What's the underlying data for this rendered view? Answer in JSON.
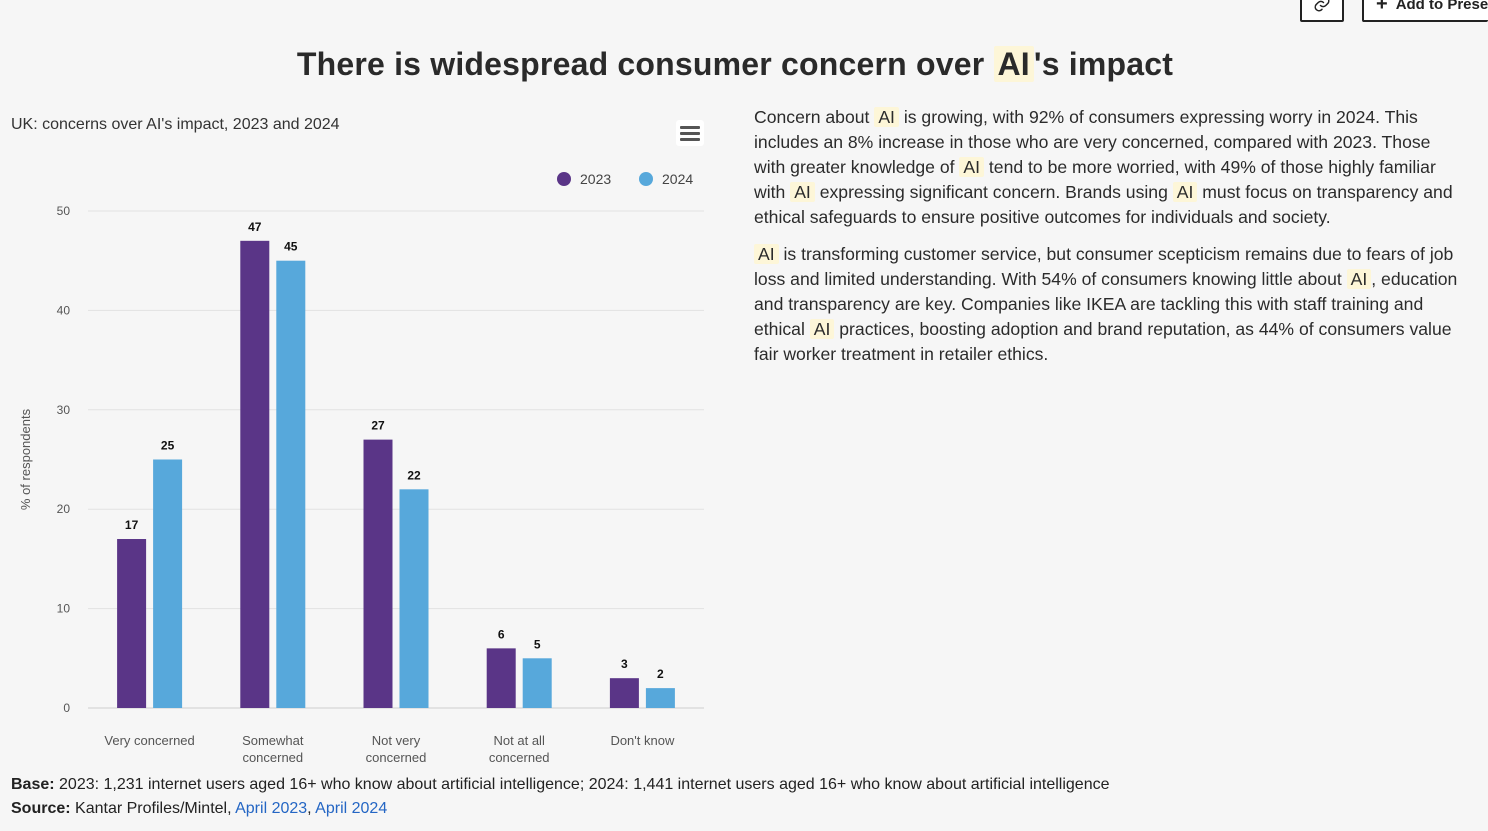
{
  "toolbar": {
    "add_label": "Add to Prese"
  },
  "page": {
    "title_before": "There is widespread consumer concern over",
    "title_highlight": "AI",
    "title_after": "'s impact"
  },
  "chart_data": {
    "type": "bar",
    "title": "UK: concerns over AI's impact, 2023 and 2024",
    "xlabel": "",
    "ylabel": "% of respondents",
    "ylim": [
      0,
      50
    ],
    "yticks": [
      0,
      10,
      20,
      30,
      40,
      50
    ],
    "grid": true,
    "legend_position": "top-right",
    "categories": [
      [
        "Very concerned"
      ],
      [
        "Somewhat",
        "concerned"
      ],
      [
        "Not very",
        "concerned"
      ],
      [
        "Not at all",
        "concerned"
      ],
      [
        "Don't know"
      ]
    ],
    "series": [
      {
        "name": "2023",
        "color": "#5a3587",
        "values": [
          17,
          47,
          27,
          6,
          3
        ]
      },
      {
        "name": "2024",
        "color": "#57a8db",
        "values": [
          25,
          45,
          22,
          5,
          2
        ]
      }
    ]
  },
  "article": {
    "paragraphs": [
      [
        {
          "t": "Concern about "
        },
        {
          "t": "AI",
          "hl": true
        },
        {
          "t": " is growing, with 92% of consumers expressing worry in 2024. This includes an 8% increase in those who are very concerned, compared with 2023. Those with greater knowledge of "
        },
        {
          "t": "AI",
          "hl": true
        },
        {
          "t": " tend to be more worried, with 49% of those highly familiar with "
        },
        {
          "t": "AI",
          "hl": true
        },
        {
          "t": " expressing significant concern. Brands using "
        },
        {
          "t": "AI",
          "hl": true
        },
        {
          "t": " must focus on transparency and ethical safeguards to ensure positive outcomes for individuals and society."
        }
      ],
      [
        {
          "t": "AI",
          "hl": true
        },
        {
          "t": " is transforming customer service, but consumer scepticism remains due to fears of job loss and limited understanding. With 54% of consumers knowing little about "
        },
        {
          "t": "AI",
          "hl": true
        },
        {
          "t": ", education and transparency are key. Companies like IKEA are tackling this with staff training and ethical "
        },
        {
          "t": "AI",
          "hl": true
        },
        {
          "t": " practices, boosting adoption and brand reputation, as 44% of consumers value fair worker treatment in retailer ethics."
        }
      ]
    ]
  },
  "footnotes": {
    "base_label": "Base:",
    "base_text": "2023: 1,231 internet users aged 16+ who know about artificial intelligence; 2024: 1,441 internet users aged 16+ who know about artificial intelligence",
    "source_label": "Source:",
    "source_text": "Kantar Profiles/Mintel, ",
    "source_link1": "April 2023",
    "source_sep": ", ",
    "source_link2": "April 2024"
  }
}
